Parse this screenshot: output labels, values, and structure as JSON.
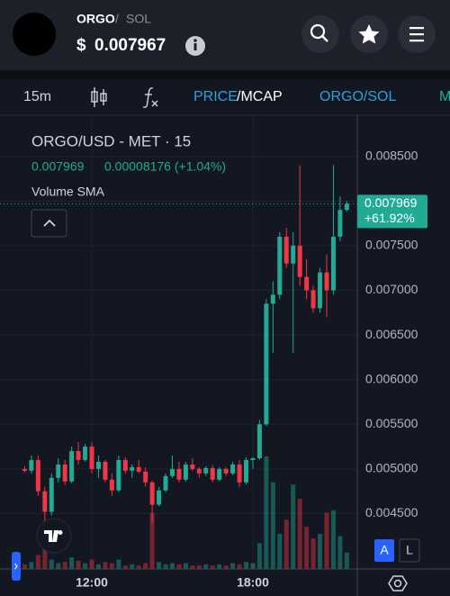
{
  "header": {
    "base": "ORGO",
    "separator": "/",
    "quote": "SOL",
    "currency": "$",
    "price": "0.007967"
  },
  "toolbar": {
    "interval": "15m",
    "price": "PRICE",
    "mcap": "/MCAP",
    "pair": "ORGO/SOL",
    "more": "M"
  },
  "chart_data": {
    "type": "candlestick",
    "title": "ORGO/USD - MET · 15",
    "last_value": "0.007969",
    "change": "0.00008176 (+1.04%)",
    "indicator": "Volume SMA",
    "last_price": 0.007969,
    "last_change": "+61.92%",
    "up_color": "#22ab94",
    "down_color": "#f23645",
    "xlim": [
      8.58,
      21.89
    ],
    "xticks": [
      {
        "value": 12,
        "label": "12:00"
      },
      {
        "value": 18,
        "label": "18:00"
      }
    ],
    "ylim": [
      0.00388,
      0.00896
    ],
    "yticks": [
      {
        "value": 0.0045,
        "label": "0.004500"
      },
      {
        "value": 0.005,
        "label": "0.005000"
      },
      {
        "value": 0.0055,
        "label": "0.005500"
      },
      {
        "value": 0.006,
        "label": "0.006000"
      },
      {
        "value": 0.0065,
        "label": "0.006500"
      },
      {
        "value": 0.007,
        "label": "0.007000"
      },
      {
        "value": 0.0075,
        "label": "0.007500"
      },
      {
        "value": 0.008,
        "label": "0.008000"
      },
      {
        "value": 0.0085,
        "label": "0.008500"
      }
    ],
    "grid": true,
    "x": [
      9.5,
      9.75,
      10,
      10.25,
      10.5,
      10.75,
      11,
      11.25,
      11.5,
      11.75,
      12,
      12.25,
      12.5,
      12.75,
      13,
      13.25,
      13.5,
      13.75,
      14,
      14.25,
      14.5,
      14.75,
      15,
      15.25,
      15.5,
      15.75,
      16,
      16.25,
      16.5,
      16.75,
      17,
      17.25,
      17.5,
      17.75,
      18,
      18.25,
      18.5,
      18.75,
      19,
      19.25,
      19.5,
      19.75,
      20,
      20.25,
      20.5,
      20.75,
      21,
      21.25,
      21.5
    ],
    "open": [
      0.005,
      0.00498,
      0.0051,
      0.00475,
      0.00452,
      0.0049,
      0.00505,
      0.00486,
      0.0052,
      0.0051,
      0.00525,
      0.005,
      0.00508,
      0.00488,
      0.00476,
      0.0051,
      0.00498,
      0.00502,
      0.00497,
      0.00485,
      0.0046,
      0.00476,
      0.00492,
      0.005,
      0.00488,
      0.00505,
      0.005,
      0.00495,
      0.00501,
      0.00488,
      0.005,
      0.00495,
      0.00505,
      0.00485,
      0.0051,
      0.00512,
      0.0055,
      0.00685,
      0.00695,
      0.0076,
      0.0073,
      0.0075,
      0.00715,
      0.007,
      0.0068,
      0.0072,
      0.007,
      0.0076,
      0.0079
    ],
    "high": [
      0.00503,
      0.00515,
      0.00515,
      0.0048,
      0.00495,
      0.00512,
      0.0051,
      0.00525,
      0.0053,
      0.00528,
      0.0053,
      0.00515,
      0.0051,
      0.00495,
      0.00515,
      0.00513,
      0.00505,
      0.0051,
      0.00502,
      0.00487,
      0.0048,
      0.00495,
      0.00515,
      0.00508,
      0.00508,
      0.00512,
      0.00502,
      0.00503,
      0.00504,
      0.00502,
      0.00502,
      0.00508,
      0.0051,
      0.00513,
      0.00513,
      0.00555,
      0.0069,
      0.0071,
      0.00765,
      0.0077,
      0.00765,
      0.0084,
      0.00735,
      0.00705,
      0.00725,
      0.0074,
      0.0084,
      0.00805,
      0.008
    ],
    "low": [
      0.00496,
      0.00495,
      0.0047,
      0.0043,
      0.00448,
      0.00485,
      0.00482,
      0.00484,
      0.00505,
      0.00508,
      0.00495,
      0.0049,
      0.00485,
      0.0047,
      0.00474,
      0.00495,
      0.0049,
      0.00495,
      0.0048,
      0.0044,
      0.00458,
      0.00474,
      0.0049,
      0.00485,
      0.00486,
      0.00498,
      0.0049,
      0.00492,
      0.00485,
      0.00486,
      0.00492,
      0.00493,
      0.0048,
      0.00483,
      0.005,
      0.0051,
      0.00548,
      0.0063,
      0.0069,
      0.00725,
      0.0063,
      0.00705,
      0.0069,
      0.00675,
      0.00675,
      0.0067,
      0.00695,
      0.00755,
      0.00788
    ],
    "close": [
      0.00498,
      0.0051,
      0.00475,
      0.00452,
      0.0049,
      0.00505,
      0.00486,
      0.0052,
      0.0051,
      0.00525,
      0.005,
      0.00508,
      0.00488,
      0.00476,
      0.0051,
      0.00498,
      0.00502,
      0.00497,
      0.00485,
      0.0046,
      0.00476,
      0.00492,
      0.005,
      0.00488,
      0.00505,
      0.005,
      0.00495,
      0.00501,
      0.00488,
      0.005,
      0.00495,
      0.00505,
      0.00485,
      0.0051,
      0.00512,
      0.0055,
      0.00685,
      0.00695,
      0.0076,
      0.0073,
      0.0075,
      0.00715,
      0.007,
      0.0068,
      0.0072,
      0.007,
      0.0076,
      0.0079,
      0.007969
    ],
    "volume": [
      4,
      6,
      12,
      30,
      8,
      5,
      6,
      10,
      7,
      5,
      8,
      4,
      6,
      5,
      8,
      3,
      4,
      3,
      5,
      48,
      6,
      4,
      5,
      4,
      5,
      3,
      3,
      4,
      3,
      4,
      3,
      5,
      4,
      6,
      5,
      22,
      96,
      74,
      30,
      42,
      72,
      60,
      36,
      26,
      30,
      48,
      50,
      28,
      14
    ]
  },
  "buttons": {
    "auto": "A",
    "log": "L"
  }
}
